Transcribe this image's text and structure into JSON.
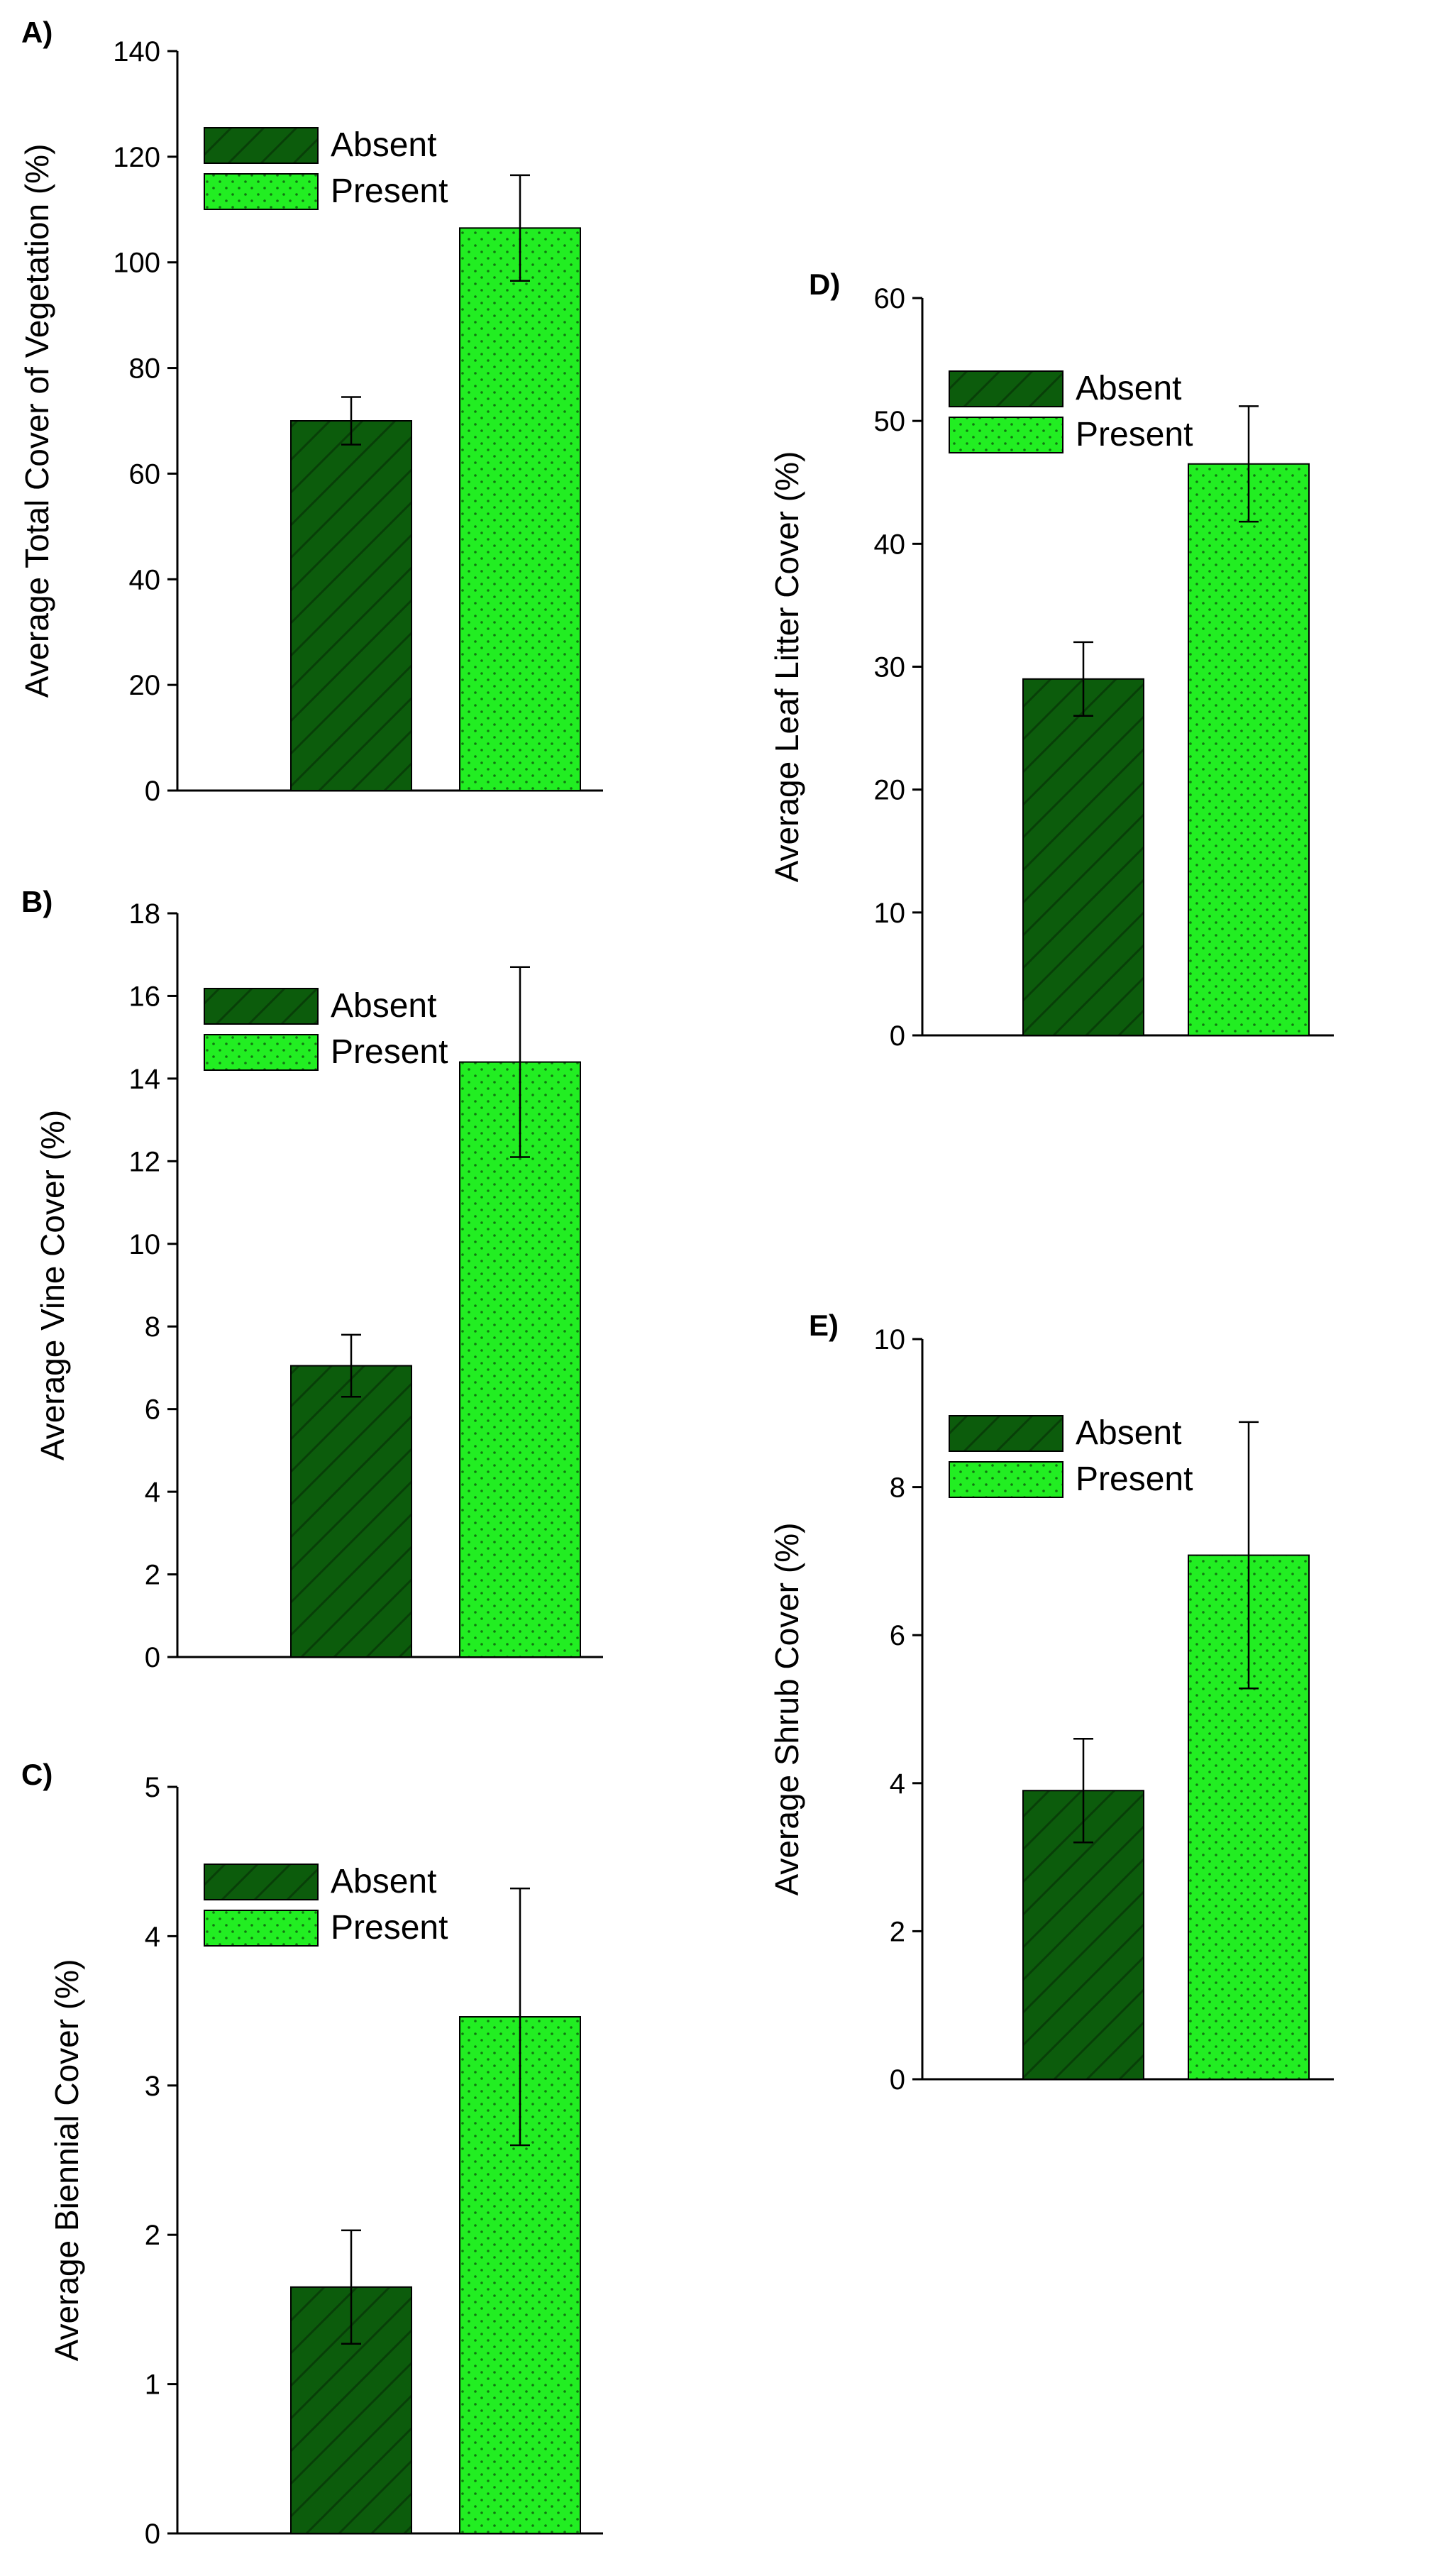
{
  "figure_colors": {
    "absent_fill": "#0c5c0c",
    "absent_hatch": "#083f08",
    "present_fill": "#22ee22",
    "present_dots": "#117711",
    "axis": "#000000"
  },
  "chart_data": [
    {
      "id": "A",
      "panel_label": "A)",
      "type": "bar",
      "ylabel": "Average Total Cover of Vegetation (%)",
      "ylim": [
        0,
        140
      ],
      "yticks": [
        0,
        20,
        40,
        60,
        80,
        100,
        120,
        140
      ],
      "legend": [
        "Absent",
        "Present"
      ],
      "legend_position": "top-left",
      "categories": [
        "Absent",
        "Present"
      ],
      "values": [
        70,
        106.5
      ],
      "errors": [
        4.5,
        10
      ]
    },
    {
      "id": "B",
      "panel_label": "B)",
      "type": "bar",
      "ylabel": "Average Vine Cover (%)",
      "ylim": [
        0,
        18
      ],
      "yticks": [
        0,
        2,
        4,
        6,
        8,
        10,
        12,
        14,
        16,
        18
      ],
      "legend": [
        "Absent",
        "Present"
      ],
      "legend_position": "top-left",
      "categories": [
        "Absent",
        "Present"
      ],
      "values": [
        7.05,
        14.4
      ],
      "errors": [
        0.75,
        2.3
      ]
    },
    {
      "id": "C",
      "panel_label": "C)",
      "type": "bar",
      "ylabel": "Average Biennial Cover (%)",
      "ylim": [
        0,
        5
      ],
      "yticks": [
        0,
        1,
        2,
        3,
        4,
        5
      ],
      "legend": [
        "Absent",
        "Present"
      ],
      "legend_position": "top-left",
      "categories": [
        "Absent",
        "Present"
      ],
      "values": [
        1.65,
        3.46
      ],
      "errors": [
        0.38,
        0.86
      ]
    },
    {
      "id": "D",
      "panel_label": "D)",
      "type": "bar",
      "ylabel": "Average Leaf Litter Cover (%)",
      "ylim": [
        0,
        60
      ],
      "yticks": [
        0,
        10,
        20,
        30,
        40,
        50,
        60
      ],
      "legend": [
        "Absent",
        "Present"
      ],
      "legend_position": "top-left",
      "categories": [
        "Absent",
        "Present"
      ],
      "values": [
        29,
        46.5
      ],
      "errors": [
        3,
        4.7
      ]
    },
    {
      "id": "E",
      "panel_label": "E)",
      "type": "bar",
      "ylabel": "Average Shrub Cover (%)",
      "ylim": [
        0,
        10
      ],
      "yticks": [
        0,
        2,
        4,
        6,
        8,
        10
      ],
      "legend": [
        "Absent",
        "Present"
      ],
      "legend_position": "top-left",
      "categories": [
        "Absent",
        "Present"
      ],
      "values": [
        3.9,
        7.08
      ],
      "errors": [
        0.7,
        1.8
      ]
    }
  ]
}
